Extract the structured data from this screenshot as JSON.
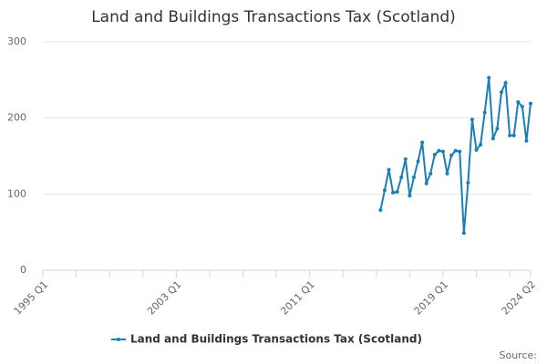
{
  "chart_data": {
    "type": "line",
    "title": "Land and Buildings Transactions Tax (Scotland)",
    "categories": [
      "1995 Q1",
      null,
      null,
      null,
      null,
      null,
      null,
      null,
      null,
      null,
      null,
      null,
      null,
      null,
      null,
      null,
      null,
      null,
      null,
      null,
      null,
      null,
      null,
      null,
      null,
      null,
      null,
      null,
      null,
      null,
      null,
      null,
      "2003 Q1",
      null,
      null,
      null,
      null,
      null,
      null,
      null,
      null,
      null,
      null,
      null,
      null,
      null,
      null,
      null,
      null,
      null,
      null,
      null,
      null,
      null,
      null,
      null,
      null,
      null,
      null,
      null,
      null,
      null,
      null,
      null,
      "2011 Q1",
      null,
      null,
      null,
      null,
      null,
      null,
      null,
      null,
      null,
      null,
      null,
      null,
      null,
      null,
      null,
      null,
      null,
      null,
      null,
      null,
      null,
      null,
      null,
      null,
      null,
      null,
      null,
      null,
      null,
      null,
      null,
      "2019 Q1",
      null,
      null,
      null,
      null,
      null,
      null,
      null,
      null,
      null,
      null,
      null,
      null,
      null,
      null,
      null,
      null,
      null,
      null,
      null,
      null,
      "2024 Q2"
    ],
    "series": [
      {
        "name": "Land and Buildings Transactions Tax (Scotland)",
        "color": "#1a7fb5",
        "values": [
          null,
          null,
          null,
          null,
          null,
          null,
          null,
          null,
          null,
          null,
          null,
          null,
          null,
          null,
          null,
          null,
          null,
          null,
          null,
          null,
          null,
          null,
          null,
          null,
          null,
          null,
          null,
          null,
          null,
          null,
          null,
          null,
          null,
          null,
          null,
          null,
          null,
          null,
          null,
          null,
          null,
          null,
          null,
          null,
          null,
          null,
          null,
          null,
          null,
          null,
          null,
          null,
          null,
          null,
          null,
          null,
          null,
          null,
          null,
          null,
          null,
          null,
          null,
          null,
          null,
          null,
          null,
          null,
          null,
          null,
          null,
          null,
          null,
          null,
          null,
          null,
          null,
          null,
          null,
          null,
          null,
          79,
          105,
          132,
          102,
          103,
          122,
          146,
          98,
          122,
          143,
          168,
          114,
          127,
          152,
          157,
          156,
          127,
          151,
          157,
          156,
          49,
          115,
          198,
          158,
          165,
          207,
          253,
          173,
          186,
          234,
          246,
          177,
          177,
          221,
          215,
          170,
          219
        ]
      }
    ],
    "ylim": [
      0,
      300
    ],
    "yticks": [
      0,
      100,
      200,
      300
    ],
    "grid": true,
    "credits": "Source:"
  }
}
